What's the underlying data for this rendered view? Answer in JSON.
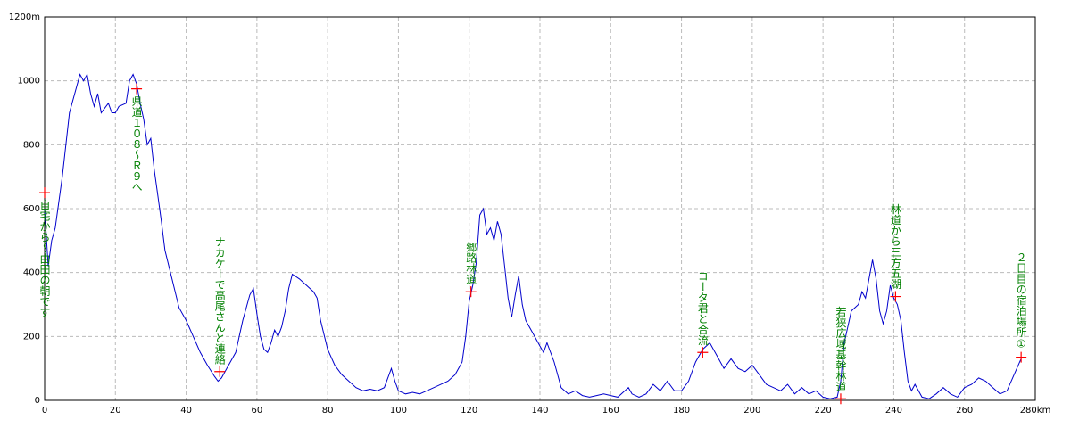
{
  "chart_data": {
    "type": "line",
    "x": [
      0,
      1,
      2,
      3,
      5,
      7,
      9,
      10,
      11,
      12,
      13,
      14,
      15,
      16,
      18,
      19,
      20,
      21,
      23,
      24,
      25,
      26,
      27,
      28,
      29,
      30,
      31,
      32,
      33,
      34,
      36,
      38,
      40,
      42,
      44,
      46,
      48,
      49,
      50,
      52,
      54,
      56,
      58,
      59,
      60,
      61,
      62,
      63,
      64,
      65,
      66,
      67,
      68,
      69,
      70,
      72,
      74,
      76,
      77,
      78,
      80,
      82,
      84,
      86,
      88,
      90,
      92,
      94,
      96,
      98,
      99,
      100,
      102,
      104,
      106,
      108,
      110,
      112,
      114,
      116,
      118,
      119,
      120,
      121,
      122,
      123,
      124,
      125,
      126,
      127,
      128,
      129,
      130,
      131,
      132,
      133,
      134,
      135,
      136,
      138,
      140,
      141,
      142,
      144,
      146,
      148,
      150,
      152,
      154,
      156,
      158,
      160,
      162,
      164,
      165,
      166,
      168,
      170,
      172,
      174,
      176,
      178,
      180,
      182,
      184,
      186,
      188,
      190,
      192,
      194,
      196,
      198,
      200,
      202,
      204,
      206,
      208,
      210,
      212,
      214,
      216,
      218,
      220,
      222,
      224,
      225,
      226,
      228,
      230,
      231,
      232,
      234,
      235,
      236,
      237,
      238,
      239,
      240,
      241,
      242,
      243,
      244,
      245,
      246,
      248,
      250,
      252,
      254,
      256,
      258,
      260,
      262,
      264,
      266,
      268,
      270,
      272,
      274,
      276
    ],
    "series": [
      {
        "color": "#0000cc",
        "values": [
          600,
          420,
          500,
          540,
          700,
          900,
          980,
          1020,
          1000,
          1020,
          960,
          920,
          960,
          900,
          930,
          900,
          900,
          920,
          930,
          1000,
          1020,
          990,
          930,
          880,
          800,
          820,
          720,
          640,
          560,
          470,
          380,
          290,
          250,
          200,
          150,
          110,
          75,
          60,
          70,
          110,
          150,
          250,
          330,
          350,
          270,
          200,
          160,
          150,
          180,
          220,
          200,
          230,
          280,
          350,
          395,
          380,
          360,
          340,
          320,
          250,
          160,
          110,
          80,
          60,
          40,
          30,
          35,
          30,
          40,
          100,
          60,
          30,
          20,
          25,
          20,
          30,
          40,
          50,
          60,
          80,
          120,
          200,
          310,
          360,
          430,
          580,
          600,
          520,
          540,
          500,
          560,
          520,
          420,
          320,
          260,
          330,
          390,
          300,
          250,
          210,
          170,
          150,
          180,
          120,
          40,
          20,
          30,
          15,
          10,
          15,
          20,
          15,
          10,
          30,
          40,
          20,
          10,
          20,
          50,
          30,
          60,
          30,
          30,
          60,
          120,
          160,
          180,
          140,
          100,
          130,
          100,
          90,
          110,
          80,
          50,
          40,
          30,
          50,
          20,
          40,
          20,
          30,
          10,
          5,
          10,
          60,
          180,
          280,
          300,
          340,
          320,
          440,
          380,
          280,
          240,
          280,
          360,
          320,
          300,
          250,
          150,
          60,
          30,
          50,
          10,
          5,
          20,
          40,
          20,
          10,
          40,
          50,
          70,
          60,
          40,
          20,
          30,
          80,
          130
        ]
      }
    ],
    "annotations": [
      {
        "x": 0,
        "y": 650,
        "label": "自宅から〜由田の朝です"
      },
      {
        "x": 26,
        "y": 975,
        "label": "県道１０８～Ｒ９へ"
      },
      {
        "x": 49.5,
        "y": 90,
        "label": "ナカケーで高尾さんと連絡"
      },
      {
        "x": 120.5,
        "y": 340,
        "label": "郷路林道"
      },
      {
        "x": 186,
        "y": 150,
        "label": "コータ君と合流"
      },
      {
        "x": 225,
        "y": 5,
        "label": "若狭広域基幹林道"
      },
      {
        "x": 240.5,
        "y": 325,
        "label": "林道から三方五湖"
      },
      {
        "x": 276,
        "y": 135,
        "label": "２日目の宿泊場所①"
      }
    ],
    "marker_color": "#ff0000",
    "xlim": [
      0,
      280
    ],
    "xticks": [
      0,
      20,
      40,
      60,
      80,
      100,
      120,
      140,
      160,
      180,
      200,
      220,
      240,
      260,
      {
        "value": 280,
        "label": "280km"
      }
    ],
    "ylim": [
      0,
      1200
    ],
    "yticks": [
      0,
      200,
      400,
      600,
      800,
      1000,
      {
        "value": 1200,
        "label": "1200m"
      }
    ],
    "grid": true
  }
}
